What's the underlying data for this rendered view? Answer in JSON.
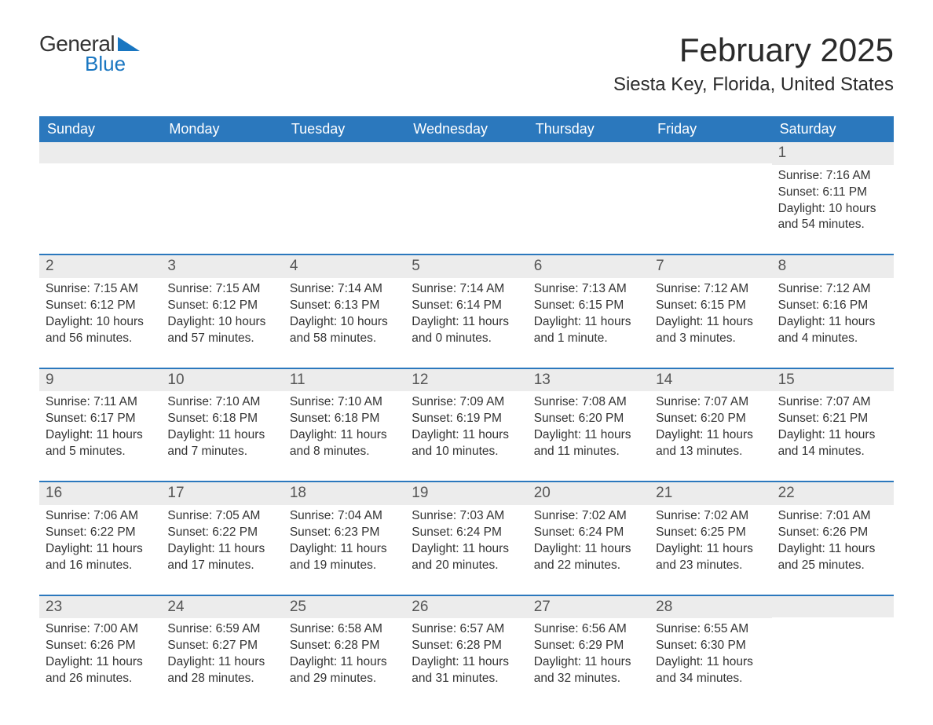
{
  "brand": {
    "line1": "General",
    "line2": "Blue"
  },
  "title": "February 2025",
  "location": "Siesta Key, Florida, United States",
  "colors": {
    "header_bg": "#2b78bd",
    "header_text": "#ffffff",
    "accent": "#1976c1",
    "daynum_bg": "#ececec",
    "body_text": "#333333",
    "page_bg": "#ffffff"
  },
  "day_headers": [
    "Sunday",
    "Monday",
    "Tuesday",
    "Wednesday",
    "Thursday",
    "Friday",
    "Saturday"
  ],
  "weeks": [
    [
      {
        "n": "",
        "sunrise": "",
        "sunset": "",
        "daylight": ""
      },
      {
        "n": "",
        "sunrise": "",
        "sunset": "",
        "daylight": ""
      },
      {
        "n": "",
        "sunrise": "",
        "sunset": "",
        "daylight": ""
      },
      {
        "n": "",
        "sunrise": "",
        "sunset": "",
        "daylight": ""
      },
      {
        "n": "",
        "sunrise": "",
        "sunset": "",
        "daylight": ""
      },
      {
        "n": "",
        "sunrise": "",
        "sunset": "",
        "daylight": ""
      },
      {
        "n": "1",
        "sunrise": "Sunrise: 7:16 AM",
        "sunset": "Sunset: 6:11 PM",
        "daylight": "Daylight: 10 hours and 54 minutes."
      }
    ],
    [
      {
        "n": "2",
        "sunrise": "Sunrise: 7:15 AM",
        "sunset": "Sunset: 6:12 PM",
        "daylight": "Daylight: 10 hours and 56 minutes."
      },
      {
        "n": "3",
        "sunrise": "Sunrise: 7:15 AM",
        "sunset": "Sunset: 6:12 PM",
        "daylight": "Daylight: 10 hours and 57 minutes."
      },
      {
        "n": "4",
        "sunrise": "Sunrise: 7:14 AM",
        "sunset": "Sunset: 6:13 PM",
        "daylight": "Daylight: 10 hours and 58 minutes."
      },
      {
        "n": "5",
        "sunrise": "Sunrise: 7:14 AM",
        "sunset": "Sunset: 6:14 PM",
        "daylight": "Daylight: 11 hours and 0 minutes."
      },
      {
        "n": "6",
        "sunrise": "Sunrise: 7:13 AM",
        "sunset": "Sunset: 6:15 PM",
        "daylight": "Daylight: 11 hours and 1 minute."
      },
      {
        "n": "7",
        "sunrise": "Sunrise: 7:12 AM",
        "sunset": "Sunset: 6:15 PM",
        "daylight": "Daylight: 11 hours and 3 minutes."
      },
      {
        "n": "8",
        "sunrise": "Sunrise: 7:12 AM",
        "sunset": "Sunset: 6:16 PM",
        "daylight": "Daylight: 11 hours and 4 minutes."
      }
    ],
    [
      {
        "n": "9",
        "sunrise": "Sunrise: 7:11 AM",
        "sunset": "Sunset: 6:17 PM",
        "daylight": "Daylight: 11 hours and 5 minutes."
      },
      {
        "n": "10",
        "sunrise": "Sunrise: 7:10 AM",
        "sunset": "Sunset: 6:18 PM",
        "daylight": "Daylight: 11 hours and 7 minutes."
      },
      {
        "n": "11",
        "sunrise": "Sunrise: 7:10 AM",
        "sunset": "Sunset: 6:18 PM",
        "daylight": "Daylight: 11 hours and 8 minutes."
      },
      {
        "n": "12",
        "sunrise": "Sunrise: 7:09 AM",
        "sunset": "Sunset: 6:19 PM",
        "daylight": "Daylight: 11 hours and 10 minutes."
      },
      {
        "n": "13",
        "sunrise": "Sunrise: 7:08 AM",
        "sunset": "Sunset: 6:20 PM",
        "daylight": "Daylight: 11 hours and 11 minutes."
      },
      {
        "n": "14",
        "sunrise": "Sunrise: 7:07 AM",
        "sunset": "Sunset: 6:20 PM",
        "daylight": "Daylight: 11 hours and 13 minutes."
      },
      {
        "n": "15",
        "sunrise": "Sunrise: 7:07 AM",
        "sunset": "Sunset: 6:21 PM",
        "daylight": "Daylight: 11 hours and 14 minutes."
      }
    ],
    [
      {
        "n": "16",
        "sunrise": "Sunrise: 7:06 AM",
        "sunset": "Sunset: 6:22 PM",
        "daylight": "Daylight: 11 hours and 16 minutes."
      },
      {
        "n": "17",
        "sunrise": "Sunrise: 7:05 AM",
        "sunset": "Sunset: 6:22 PM",
        "daylight": "Daylight: 11 hours and 17 minutes."
      },
      {
        "n": "18",
        "sunrise": "Sunrise: 7:04 AM",
        "sunset": "Sunset: 6:23 PM",
        "daylight": "Daylight: 11 hours and 19 minutes."
      },
      {
        "n": "19",
        "sunrise": "Sunrise: 7:03 AM",
        "sunset": "Sunset: 6:24 PM",
        "daylight": "Daylight: 11 hours and 20 minutes."
      },
      {
        "n": "20",
        "sunrise": "Sunrise: 7:02 AM",
        "sunset": "Sunset: 6:24 PM",
        "daylight": "Daylight: 11 hours and 22 minutes."
      },
      {
        "n": "21",
        "sunrise": "Sunrise: 7:02 AM",
        "sunset": "Sunset: 6:25 PM",
        "daylight": "Daylight: 11 hours and 23 minutes."
      },
      {
        "n": "22",
        "sunrise": "Sunrise: 7:01 AM",
        "sunset": "Sunset: 6:26 PM",
        "daylight": "Daylight: 11 hours and 25 minutes."
      }
    ],
    [
      {
        "n": "23",
        "sunrise": "Sunrise: 7:00 AM",
        "sunset": "Sunset: 6:26 PM",
        "daylight": "Daylight: 11 hours and 26 minutes."
      },
      {
        "n": "24",
        "sunrise": "Sunrise: 6:59 AM",
        "sunset": "Sunset: 6:27 PM",
        "daylight": "Daylight: 11 hours and 28 minutes."
      },
      {
        "n": "25",
        "sunrise": "Sunrise: 6:58 AM",
        "sunset": "Sunset: 6:28 PM",
        "daylight": "Daylight: 11 hours and 29 minutes."
      },
      {
        "n": "26",
        "sunrise": "Sunrise: 6:57 AM",
        "sunset": "Sunset: 6:28 PM",
        "daylight": "Daylight: 11 hours and 31 minutes."
      },
      {
        "n": "27",
        "sunrise": "Sunrise: 6:56 AM",
        "sunset": "Sunset: 6:29 PM",
        "daylight": "Daylight: 11 hours and 32 minutes."
      },
      {
        "n": "28",
        "sunrise": "Sunrise: 6:55 AM",
        "sunset": "Sunset: 6:30 PM",
        "daylight": "Daylight: 11 hours and 34 minutes."
      },
      {
        "n": "",
        "sunrise": "",
        "sunset": "",
        "daylight": ""
      }
    ]
  ]
}
